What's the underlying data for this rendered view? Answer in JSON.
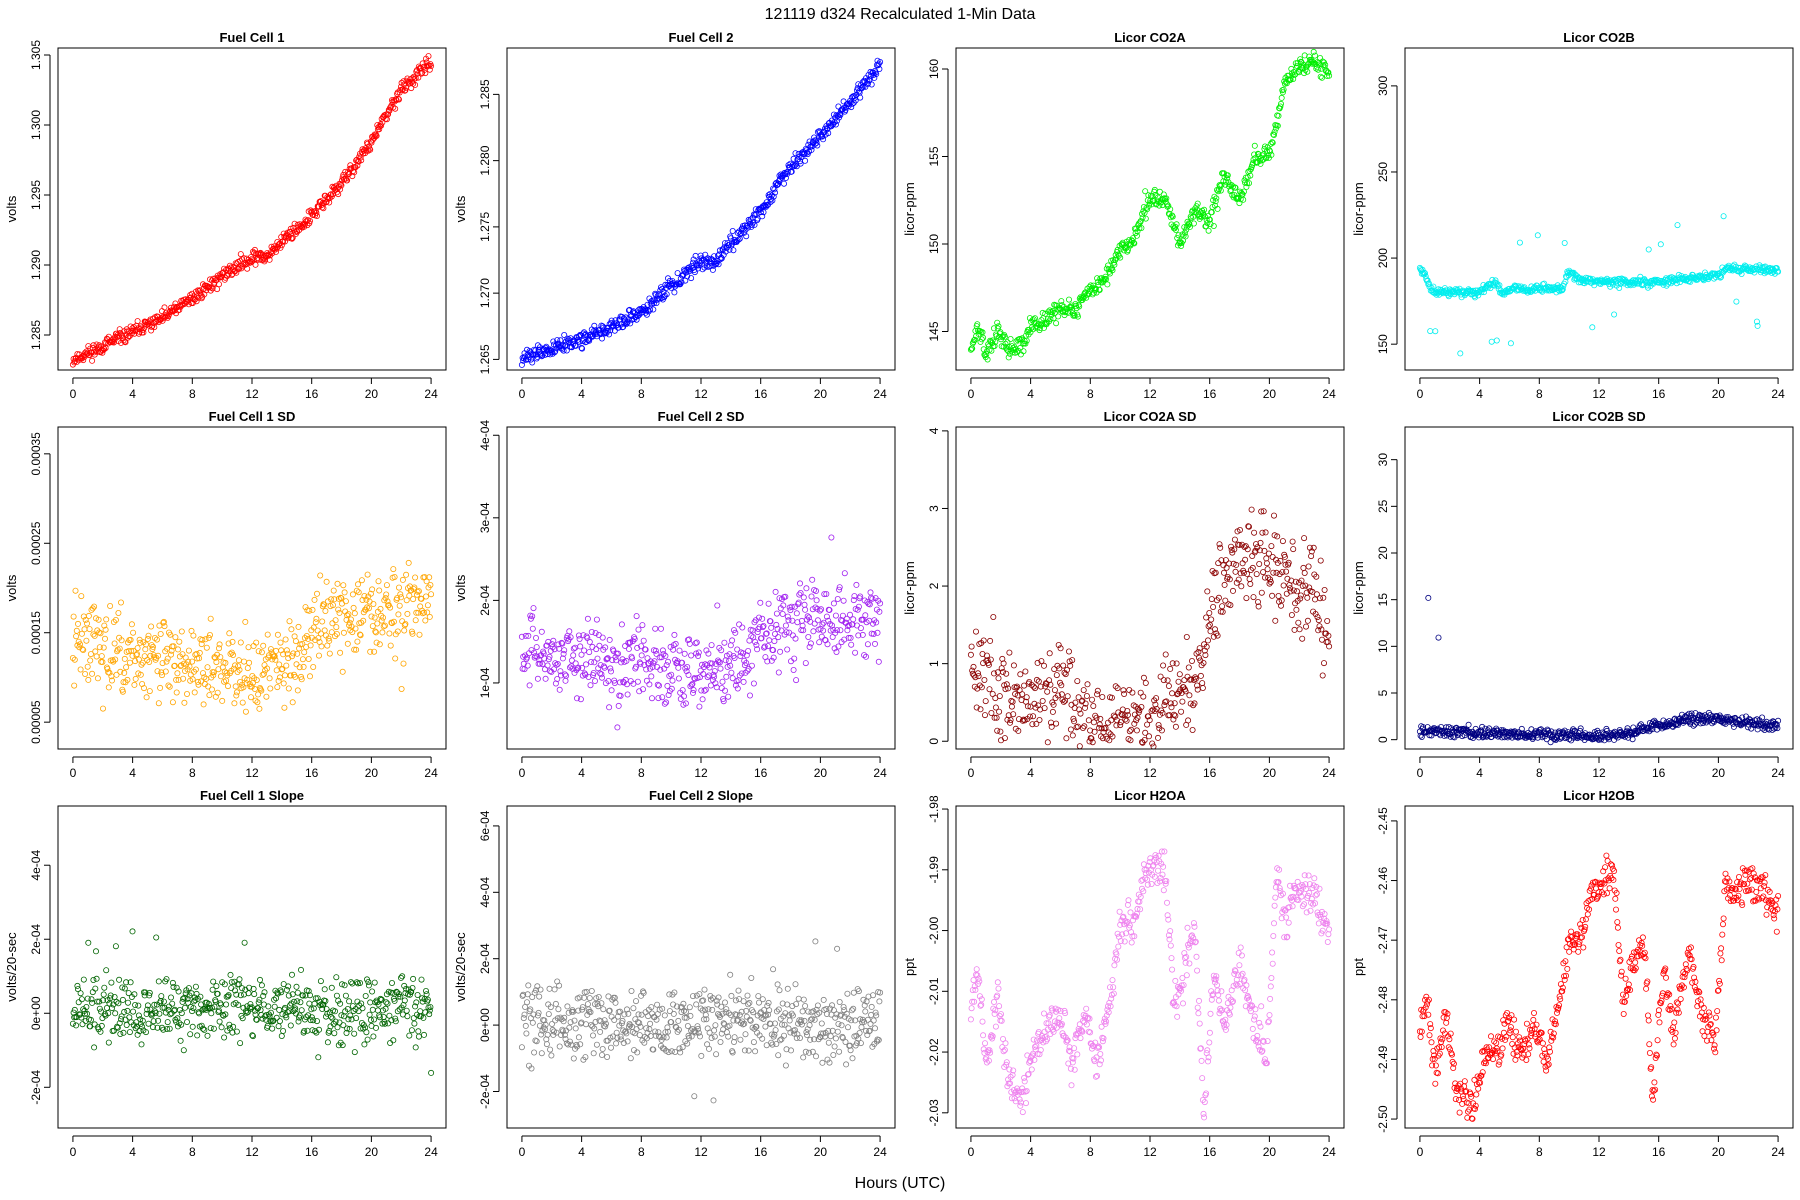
{
  "figure": {
    "title": "121119    d324    Recalculated 1-Min Data",
    "xlabel": "Hours (UTC)"
  },
  "chart_data": [
    {
      "type": "scatter",
      "title": "Fuel Cell 1",
      "ylabel": "volts",
      "color": "#ff0000",
      "xlim": [
        -1,
        25
      ],
      "xticks": [
        0,
        4,
        8,
        12,
        16,
        20,
        24
      ],
      "xticklabels": [
        "0",
        "4",
        "8",
        "12",
        "16",
        "20",
        "24"
      ],
      "ylim": [
        1.2825,
        1.3055
      ],
      "yticks": [
        1.285,
        1.29,
        1.295,
        1.3,
        1.305
      ],
      "yticklabels": [
        "1.285",
        "1.290",
        "1.295",
        "1.300",
        "1.305"
      ],
      "profile": [
        [
          0,
          1.2832
        ],
        [
          2,
          1.2842
        ],
        [
          4,
          1.2852
        ],
        [
          6,
          1.2862
        ],
        [
          8,
          1.2876
        ],
        [
          10,
          1.2892
        ],
        [
          12,
          1.2906
        ],
        [
          12.8,
          1.2905
        ],
        [
          14,
          1.2917
        ],
        [
          16,
          1.2935
        ],
        [
          18,
          1.2958
        ],
        [
          20,
          1.2988
        ],
        [
          22,
          1.3025
        ],
        [
          24,
          1.3045
        ]
      ],
      "noise": 0.00025,
      "outlier_rate": 0.0,
      "outlier_amp": 0,
      "density": 1,
      "seed": 11
    },
    {
      "type": "scatter",
      "title": "Fuel Cell 2",
      "ylabel": "volts",
      "color": "#0000ff",
      "xlim": [
        -1,
        25
      ],
      "xticks": [
        0,
        4,
        8,
        12,
        16,
        20,
        24
      ],
      "xticklabels": [
        "0",
        "4",
        "8",
        "12",
        "16",
        "20",
        "24"
      ],
      "ylim": [
        1.2642,
        1.2885
      ],
      "yticks": [
        1.265,
        1.27,
        1.275,
        1.28,
        1.285
      ],
      "yticklabels": [
        "1.265",
        "1.270",
        "1.275",
        "1.280",
        "1.285"
      ],
      "profile": [
        [
          0,
          1.2651
        ],
        [
          4,
          1.2665
        ],
        [
          8,
          1.2685
        ],
        [
          12,
          1.2725
        ],
        [
          13,
          1.2722
        ],
        [
          14,
          1.2738
        ],
        [
          16,
          1.2762
        ],
        [
          18,
          1.2795
        ],
        [
          20,
          1.2818
        ],
        [
          22,
          1.2845
        ],
        [
          24,
          1.2872
        ]
      ],
      "noise": 0.0003,
      "outlier_rate": 0.0,
      "outlier_amp": 0,
      "density": 1,
      "seed": 12
    },
    {
      "type": "scatter",
      "title": "Licor CO2A",
      "ylabel": "licor-ppm",
      "color": "#00ee00",
      "xlim": [
        -1,
        25
      ],
      "xticks": [
        0,
        4,
        8,
        12,
        16,
        20,
        24
      ],
      "xticklabels": [
        "0",
        "4",
        "8",
        "12",
        "16",
        "20",
        "24"
      ],
      "ylim": [
        142.8,
        161.2
      ],
      "yticks": [
        145,
        150,
        155,
        160
      ],
      "yticklabels": [
        "145",
        "150",
        "155",
        "160"
      ],
      "profile": [
        [
          0,
          144
        ],
        [
          0.5,
          145.2
        ],
        [
          1,
          143.6
        ],
        [
          1.8,
          145.0
        ],
        [
          2.5,
          144.0
        ],
        [
          3.5,
          144.2
        ],
        [
          4,
          145.3
        ],
        [
          5,
          145.6
        ],
        [
          6,
          146.4
        ],
        [
          7,
          146.2
        ],
        [
          8,
          147.3
        ],
        [
          9,
          148.0
        ],
        [
          10,
          149.6
        ],
        [
          11,
          150.5
        ],
        [
          12,
          152.5
        ],
        [
          13,
          152.8
        ],
        [
          14,
          150.0
        ],
        [
          15,
          152.0
        ],
        [
          16,
          151.0
        ],
        [
          16.5,
          153.0
        ],
        [
          17,
          153.8
        ],
        [
          18,
          152.6
        ],
        [
          19,
          154.8
        ],
        [
          20,
          155.0
        ],
        [
          21,
          159.0
        ],
        [
          22,
          160.2
        ],
        [
          23,
          160.4
        ],
        [
          24,
          159.8
        ]
      ],
      "noise": 0.25,
      "outlier_rate": 0.01,
      "outlier_amp": 1.5,
      "density": 1,
      "seed": 13
    },
    {
      "type": "scatter",
      "title": "Licor CO2B",
      "ylabel": "licor-ppm",
      "color": "#00eeee",
      "xlim": [
        -1,
        25
      ],
      "xticks": [
        0,
        4,
        8,
        12,
        16,
        20,
        24
      ],
      "xticklabels": [
        "0",
        "4",
        "8",
        "12",
        "16",
        "20",
        "24"
      ],
      "ylim": [
        135,
        322
      ],
      "yticks": [
        150,
        200,
        250,
        300
      ],
      "yticklabels": [
        "150",
        "200",
        "250",
        "300"
      ],
      "profile": [
        [
          0,
          195
        ],
        [
          0.6,
          185
        ],
        [
          1,
          180
        ],
        [
          4,
          180
        ],
        [
          5,
          186
        ],
        [
          5.5,
          180
        ],
        [
          6,
          182
        ],
        [
          9.5,
          182
        ],
        [
          10,
          192
        ],
        [
          11,
          186
        ],
        [
          15,
          186
        ],
        [
          16,
          186
        ],
        [
          20,
          190
        ],
        [
          20.5,
          194
        ],
        [
          24,
          193
        ]
      ],
      "noise": 1.2,
      "outlier_rate": 0.03,
      "outlier_amp": 35,
      "density": 1,
      "seed": 14
    },
    {
      "type": "scatter",
      "title": "Fuel Cell 1 SD",
      "ylabel": "volts",
      "color": "#ffa500",
      "xlim": [
        -1,
        25
      ],
      "xticks": [
        0,
        4,
        8,
        12,
        16,
        20,
        24
      ],
      "xticklabels": [
        "0",
        "4",
        "8",
        "12",
        "16",
        "20",
        "24"
      ],
      "ylim": [
        2e-05,
        0.00038
      ],
      "yticks": [
        5e-05,
        0.00015,
        0.00025,
        0.00035
      ],
      "yticklabels": [
        "0.00005",
        "0.00015",
        "0.00025",
        "0.00035"
      ],
      "profile": [
        [
          0,
          0.000145
        ],
        [
          4,
          0.000125
        ],
        [
          8,
          0.000115
        ],
        [
          12,
          0.000105
        ],
        [
          15,
          0.00012
        ],
        [
          16,
          0.00016
        ],
        [
          20,
          0.00017
        ],
        [
          24,
          0.000175
        ]
      ],
      "noise": 2.2e-05,
      "outlier_rate": 0.02,
      "outlier_amp": 8e-05,
      "density": 1,
      "seed": 15
    },
    {
      "type": "scatter",
      "title": "Fuel Cell 2 SD",
      "ylabel": "volts",
      "color": "#a020f0",
      "xlim": [
        -1,
        25
      ],
      "xticks": [
        0,
        4,
        8,
        12,
        16,
        20,
        24
      ],
      "xticklabels": [
        "0",
        "4",
        "8",
        "12",
        "16",
        "20",
        "24"
      ],
      "ylim": [
        2e-05,
        0.00041
      ],
      "yticks": [
        0.0001,
        0.0002,
        0.0003,
        0.0004
      ],
      "yticklabels": [
        "1e-04",
        "2e-04",
        "3e-04",
        "4e-04"
      ],
      "profile": [
        [
          0,
          0.000145
        ],
        [
          4,
          0.000128
        ],
        [
          8,
          0.000118
        ],
        [
          12,
          0.000112
        ],
        [
          15,
          0.000125
        ],
        [
          16,
          0.000165
        ],
        [
          20,
          0.000178
        ],
        [
          24,
          0.000175
        ]
      ],
      "noise": 2.2e-05,
      "outlier_rate": 0.02,
      "outlier_amp": 9e-05,
      "density": 1,
      "seed": 16
    },
    {
      "type": "scatter",
      "title": "Licor CO2A SD",
      "ylabel": "licor-ppm",
      "color": "#8b0000",
      "xlim": [
        -1,
        25
      ],
      "xticks": [
        0,
        4,
        8,
        12,
        16,
        20,
        24
      ],
      "xticklabels": [
        "0",
        "4",
        "8",
        "12",
        "16",
        "20",
        "24"
      ],
      "ylim": [
        -0.1,
        4.05
      ],
      "yticks": [
        0,
        1,
        2,
        3,
        4
      ],
      "yticklabels": [
        "0",
        "1",
        "2",
        "3",
        "4"
      ],
      "profile": [
        [
          0,
          1.1
        ],
        [
          2,
          0.55
        ],
        [
          4,
          0.4
        ],
        [
          6,
          0.7
        ],
        [
          8,
          0.25
        ],
        [
          10,
          0.15
        ],
        [
          12,
          0.2
        ],
        [
          13,
          0.5
        ],
        [
          15,
          0.7
        ],
        [
          16,
          1.6
        ],
        [
          17,
          2.2
        ],
        [
          19,
          2.4
        ],
        [
          21,
          2.1
        ],
        [
          23,
          1.9
        ],
        [
          24,
          1.3
        ]
      ],
      "noise": 0.3,
      "outlier_rate": 0.01,
      "outlier_amp": 1.0,
      "density": 1,
      "seed": 17
    },
    {
      "type": "scatter",
      "title": "Licor CO2B SD",
      "ylabel": "licor-ppm",
      "color": "#000080",
      "xlim": [
        -1,
        25
      ],
      "xticks": [
        0,
        4,
        8,
        12,
        16,
        20,
        24
      ],
      "xticklabels": [
        "0",
        "4",
        "8",
        "12",
        "16",
        "20",
        "24"
      ],
      "ylim": [
        -1,
        33.5
      ],
      "yticks": [
        0,
        5,
        10,
        15,
        20,
        25,
        30
      ],
      "yticklabels": [
        "0",
        "5",
        "10",
        "15",
        "20",
        "25",
        "30"
      ],
      "profile": [
        [
          0,
          1.0
        ],
        [
          4,
          0.7
        ],
        [
          8,
          0.5
        ],
        [
          12,
          0.4
        ],
        [
          14,
          0.8
        ],
        [
          16,
          1.5
        ],
        [
          18,
          2.2
        ],
        [
          20,
          2.2
        ],
        [
          24,
          1.5
        ]
      ],
      "noise": 0.3,
      "outlier_rate": 0.02,
      "outlier_amp": 18,
      "density": 1,
      "seed": 18
    },
    {
      "type": "scatter",
      "title": "Fuel Cell 1 Slope",
      "ylabel": "volts/20-sec",
      "color": "#006400",
      "xlim": [
        -1,
        25
      ],
      "xticks": [
        0,
        4,
        8,
        12,
        16,
        20,
        24
      ],
      "xticklabels": [
        "0",
        "4",
        "8",
        "12",
        "16",
        "20",
        "24"
      ],
      "ylim": [
        -0.00031,
        0.00056
      ],
      "yticks": [
        -0.0002,
        0,
        0.0002,
        0.0004
      ],
      "yticklabels": [
        "-2e-04",
        "0e+00",
        "2e-04",
        "4e-04"
      ],
      "profile": [
        [
          0,
          1e-05
        ],
        [
          24,
          1e-05
        ]
      ],
      "noise": 4.5e-05,
      "outlier_rate": 0.02,
      "outlier_amp": 0.00018,
      "density": 1,
      "seed": 19
    },
    {
      "type": "scatter",
      "title": "Fuel Cell 2 Slope",
      "ylabel": "volts/20-sec",
      "color": "#808080",
      "xlim": [
        -1,
        25
      ],
      "xticks": [
        0,
        4,
        8,
        12,
        16,
        20,
        24
      ],
      "xticklabels": [
        "0",
        "4",
        "8",
        "12",
        "16",
        "20",
        "24"
      ],
      "ylim": [
        -0.00031,
        0.00066
      ],
      "yticks": [
        -0.0002,
        0,
        0.0002,
        0.0004,
        0.0006
      ],
      "yticklabels": [
        "-2e-04",
        "0e+00",
        "2e-04",
        "4e-04",
        "6e-04"
      ],
      "profile": [
        [
          0,
          5e-06
        ],
        [
          24,
          5e-06
        ]
      ],
      "noise": 5.5e-05,
      "outlier_rate": 0.02,
      "outlier_amp": 0.0002,
      "density": 1,
      "seed": 20
    },
    {
      "type": "scatter",
      "title": "Licor H2OA",
      "ylabel": "ppt",
      "color": "#ee82ee",
      "xlim": [
        -1,
        25
      ],
      "xticks": [
        0,
        4,
        8,
        12,
        16,
        20,
        24
      ],
      "xticklabels": [
        "0",
        "4",
        "8",
        "12",
        "16",
        "20",
        "24"
      ],
      "ylim": [
        -2.0325,
        -1.9795
      ],
      "yticks": [
        -2.03,
        -2.02,
        -2.01,
        -2.0,
        -1.99,
        -1.98
      ],
      "yticklabels": [
        "-2.03",
        "-2.02",
        "-2.01",
        "-2.00",
        "-1.99",
        "-1.98"
      ],
      "profile": [
        [
          0,
          -2.012
        ],
        [
          0.5,
          -2.007
        ],
        [
          1,
          -2.022
        ],
        [
          1.8,
          -2.01
        ],
        [
          2.5,
          -2.025
        ],
        [
          3.5,
          -2.028
        ],
        [
          4.2,
          -2.02
        ],
        [
          5.3,
          -2.015
        ],
        [
          6,
          -2.014
        ],
        [
          6.8,
          -2.022
        ],
        [
          7.6,
          -2.014
        ],
        [
          8.5,
          -2.022
        ],
        [
          9.5,
          -2.009
        ],
        [
          10,
          -1.999
        ],
        [
          11,
          -1.998
        ],
        [
          11.5,
          -1.993
        ],
        [
          12.3,
          -1.989
        ],
        [
          13,
          -1.99
        ],
        [
          13.6,
          -2.012
        ],
        [
          14.2,
          -2.008
        ],
        [
          15,
          -2.0
        ],
        [
          15.6,
          -2.03
        ],
        [
          16.3,
          -2.007
        ],
        [
          17,
          -2.016
        ],
        [
          18,
          -2.005
        ],
        [
          19,
          -2.015
        ],
        [
          19.8,
          -2.022
        ],
        [
          20.5,
          -1.99
        ],
        [
          21,
          -1.998
        ],
        [
          22,
          -1.993
        ],
        [
          23,
          -1.994
        ],
        [
          24,
          -2.0
        ]
      ],
      "noise": 0.0015,
      "outlier_rate": 0.01,
      "outlier_amp": 0.004,
      "density": 1,
      "seed": 21
    },
    {
      "type": "scatter",
      "title": "Licor H2OB",
      "ylabel": "ppt",
      "color": "#ff0000",
      "xlim": [
        -1,
        25
      ],
      "xticks": [
        0,
        4,
        8,
        12,
        16,
        20,
        24
      ],
      "xticklabels": [
        "0",
        "4",
        "8",
        "12",
        "16",
        "20",
        "24"
      ],
      "ylim": [
        -2.5015,
        -2.4475
      ],
      "yticks": [
        -2.5,
        -2.49,
        -2.48,
        -2.47,
        -2.46,
        -2.45
      ],
      "yticklabels": [
        "-2.50",
        "-2.49",
        "-2.48",
        "-2.47",
        "-2.46",
        "-2.45"
      ],
      "profile": [
        [
          0,
          -2.485
        ],
        [
          0.5,
          -2.48
        ],
        [
          1,
          -2.492
        ],
        [
          1.8,
          -2.482
        ],
        [
          2.5,
          -2.495
        ],
        [
          3.5,
          -2.498
        ],
        [
          4.2,
          -2.49
        ],
        [
          5.3,
          -2.488
        ],
        [
          6,
          -2.484
        ],
        [
          6.8,
          -2.49
        ],
        [
          7.6,
          -2.484
        ],
        [
          8.5,
          -2.49
        ],
        [
          9.5,
          -2.478
        ],
        [
          10,
          -2.471
        ],
        [
          11,
          -2.468
        ],
        [
          11.5,
          -2.462
        ],
        [
          12.3,
          -2.46
        ],
        [
          13,
          -2.458
        ],
        [
          13.6,
          -2.48
        ],
        [
          14.2,
          -2.476
        ],
        [
          15,
          -2.469
        ],
        [
          15.6,
          -2.497
        ],
        [
          16.3,
          -2.475
        ],
        [
          17,
          -2.485
        ],
        [
          18,
          -2.472
        ],
        [
          19,
          -2.483
        ],
        [
          19.8,
          -2.487
        ],
        [
          20.5,
          -2.459
        ],
        [
          21,
          -2.463
        ],
        [
          22,
          -2.46
        ],
        [
          23,
          -2.461
        ],
        [
          24,
          -2.466
        ]
      ],
      "noise": 0.0015,
      "outlier_rate": 0.01,
      "outlier_amp": 0.004,
      "density": 1,
      "seed": 22
    }
  ]
}
